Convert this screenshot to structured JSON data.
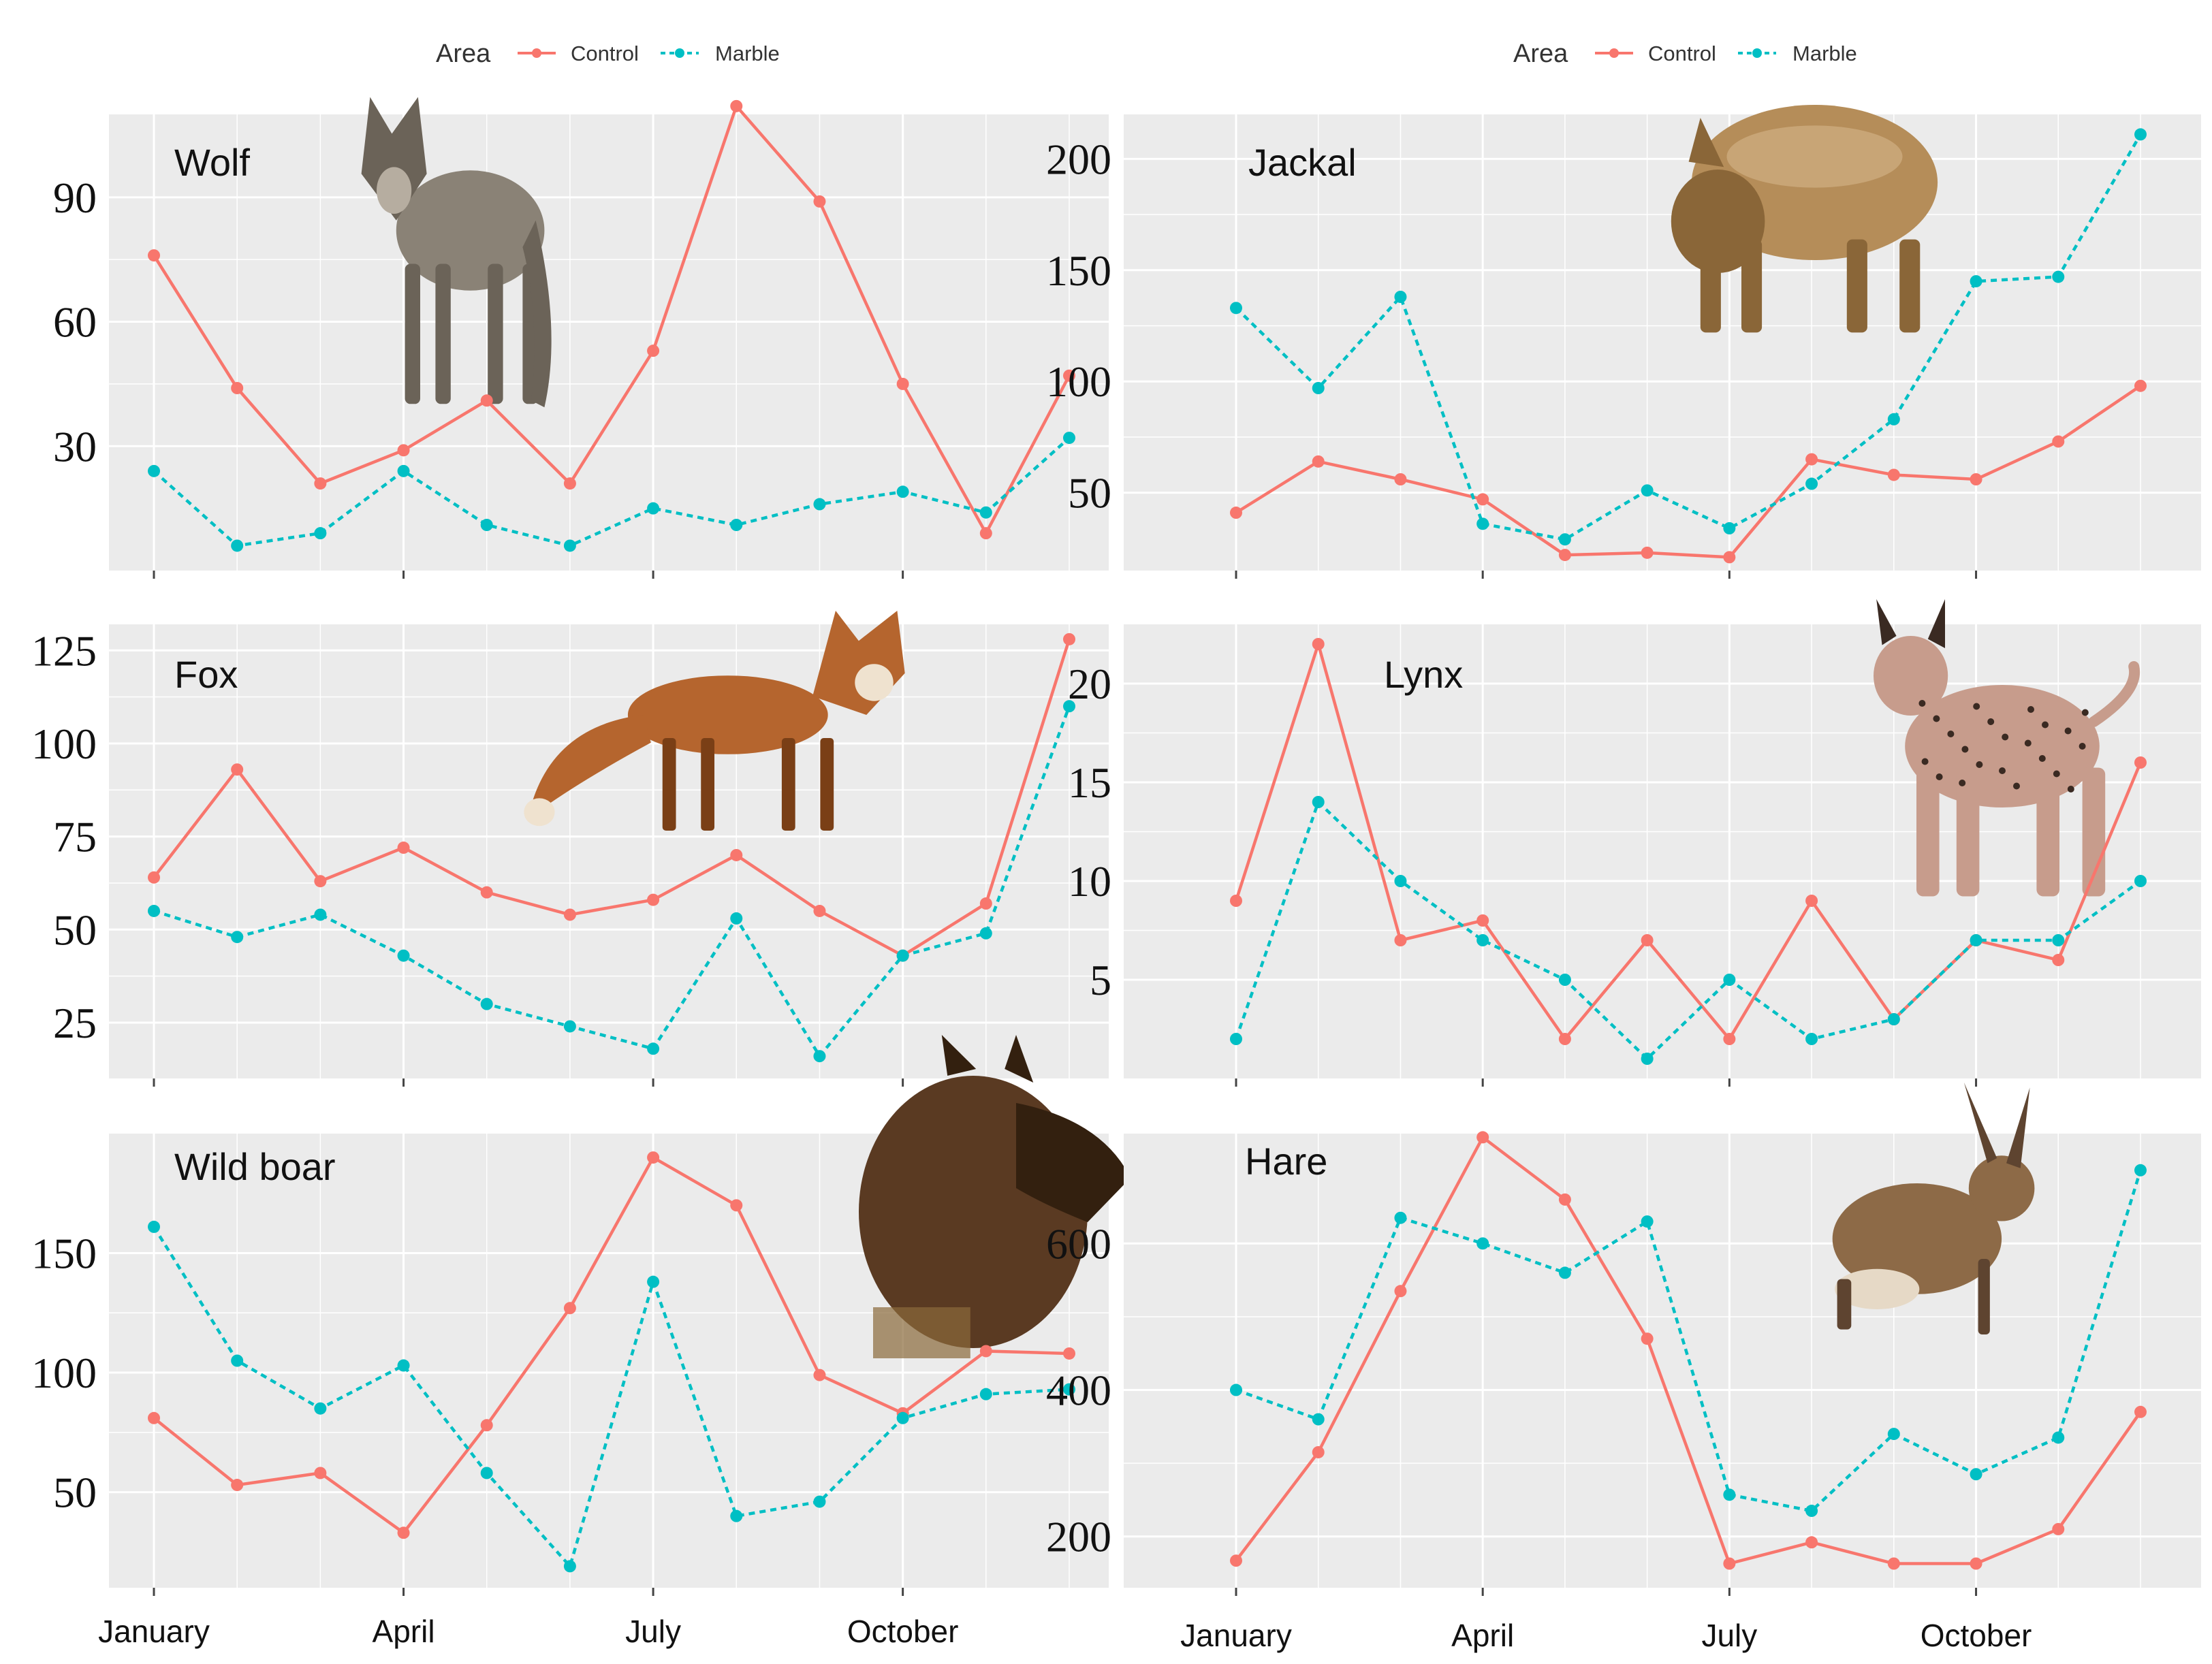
{
  "legends": [
    {
      "title": "Area",
      "items": [
        "Control",
        "Marble"
      ]
    },
    {
      "title": "Area",
      "items": [
        "Control",
        "Marble"
      ]
    }
  ],
  "colors": {
    "control": "#F8766D",
    "marble": "#00BFC4",
    "panel_bg": "#EBEBEB",
    "grid": "#FFFFFF"
  },
  "x_tick_labels": [
    "January",
    "April",
    "July",
    "October"
  ],
  "chart_data": [
    {
      "type": "line",
      "title": "Wolf",
      "animal_image": "wolf",
      "ylim": [
        0,
        110
      ],
      "yticks": [
        30,
        60,
        90
      ],
      "x": [
        1,
        2,
        3,
        4,
        5,
        6,
        7,
        8,
        9,
        10,
        11,
        12
      ],
      "series": [
        {
          "name": "Control",
          "values": [
            76,
            44,
            21,
            29,
            41,
            21,
            53,
            112,
            89,
            45,
            9,
            47
          ]
        },
        {
          "name": "Marble",
          "values": [
            24,
            6,
            9,
            24,
            11,
            6,
            15,
            11,
            16,
            19,
            14,
            32
          ]
        }
      ]
    },
    {
      "type": "line",
      "title": "Jackal",
      "animal_image": "jackal",
      "ylim": [
        15,
        220
      ],
      "yticks": [
        50,
        100,
        150,
        200
      ],
      "x": [
        1,
        2,
        3,
        4,
        5,
        6,
        7,
        8,
        9,
        10,
        11,
        12
      ],
      "series": [
        {
          "name": "Control",
          "values": [
            41,
            64,
            56,
            47,
            22,
            23,
            21,
            65,
            58,
            56,
            73,
            98
          ]
        },
        {
          "name": "Marble",
          "values": [
            133,
            97,
            138,
            36,
            29,
            51,
            34,
            54,
            83,
            145,
            147,
            211
          ]
        }
      ]
    },
    {
      "type": "line",
      "title": "Fox",
      "animal_image": "fox",
      "ylim": [
        10,
        132
      ],
      "yticks": [
        25,
        50,
        75,
        100,
        125
      ],
      "x": [
        1,
        2,
        3,
        4,
        5,
        6,
        7,
        8,
        9,
        10,
        11,
        12
      ],
      "series": [
        {
          "name": "Control",
          "values": [
            64,
            93,
            63,
            72,
            60,
            54,
            58,
            70,
            55,
            43,
            57,
            128
          ]
        },
        {
          "name": "Marble",
          "values": [
            55,
            48,
            54,
            43,
            30,
            24,
            18,
            53,
            16,
            43,
            49,
            110
          ]
        }
      ]
    },
    {
      "type": "line",
      "title": "Lynx",
      "animal_image": "lynx",
      "ylim": [
        0,
        23
      ],
      "yticks": [
        5,
        10,
        15,
        20
      ],
      "x": [
        1,
        2,
        3,
        4,
        5,
        6,
        7,
        8,
        9,
        10,
        11,
        12
      ],
      "series": [
        {
          "name": "Control",
          "values": [
            9,
            22,
            7,
            8,
            2,
            7,
            2,
            9,
            3,
            7,
            6,
            16
          ]
        },
        {
          "name": "Marble",
          "values": [
            2,
            14,
            10,
            7,
            5,
            1,
            5,
            2,
            3,
            7,
            7,
            10
          ]
        }
      ]
    },
    {
      "type": "line",
      "title": "Wild boar",
      "animal_image": "wild-boar",
      "ylim": [
        10,
        200
      ],
      "yticks": [
        50,
        100,
        150
      ],
      "x": [
        1,
        2,
        3,
        4,
        5,
        6,
        7,
        8,
        9,
        10,
        11,
        12
      ],
      "series": [
        {
          "name": "Control",
          "values": [
            81,
            53,
            58,
            33,
            78,
            127,
            190,
            170,
            99,
            83,
            109,
            108
          ]
        },
        {
          "name": "Marble",
          "values": [
            161,
            105,
            85,
            103,
            58,
            19,
            138,
            40,
            46,
            81,
            91,
            93
          ]
        }
      ]
    },
    {
      "type": "line",
      "title": "Hare",
      "animal_image": "hare",
      "ylim": [
        130,
        750
      ],
      "yticks": [
        200,
        400,
        600
      ],
      "x": [
        1,
        2,
        3,
        4,
        5,
        6,
        7,
        8,
        9,
        10,
        11,
        12
      ],
      "series": [
        {
          "name": "Control",
          "values": [
            167,
            315,
            535,
            745,
            660,
            470,
            163,
            192,
            163,
            163,
            210,
            370
          ]
        },
        {
          "name": "Marble",
          "values": [
            400,
            360,
            635,
            600,
            560,
            630,
            257,
            235,
            340,
            285,
            335,
            700
          ]
        }
      ]
    }
  ]
}
